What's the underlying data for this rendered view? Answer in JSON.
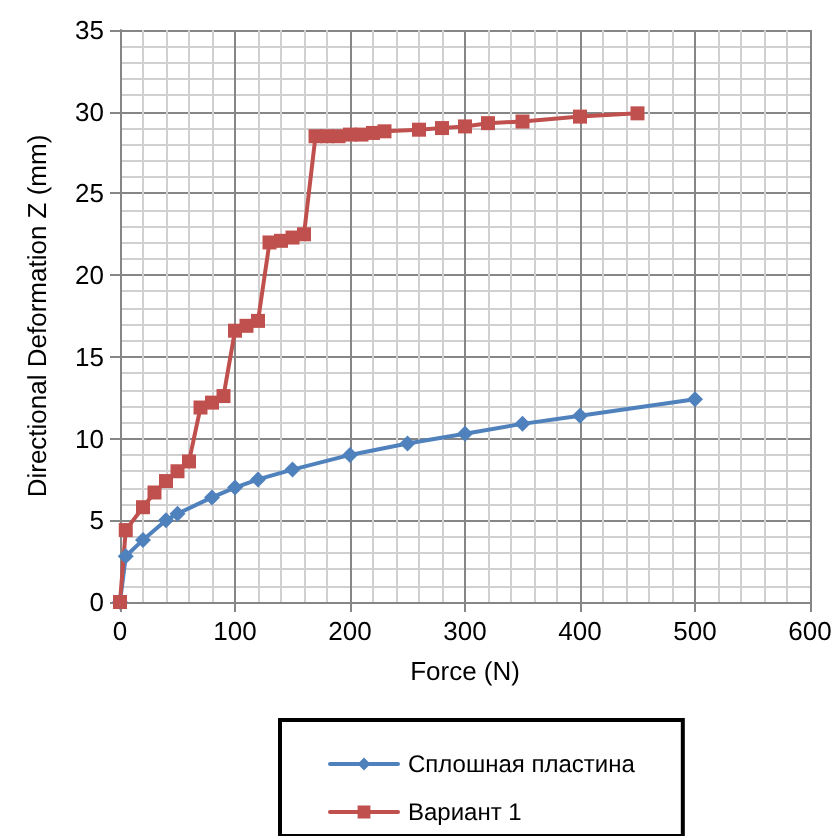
{
  "chart_data": {
    "type": "line",
    "xlabel": "Force (N)",
    "ylabel": "Directional Deformation Z (mm)",
    "xlim": [
      0,
      600
    ],
    "xticks": [
      0,
      100,
      200,
      300,
      400,
      500,
      600
    ],
    "ylim": [
      0,
      35
    ],
    "yticks": [
      0,
      5,
      10,
      15,
      20,
      25,
      30,
      35
    ],
    "grid": true,
    "legend": "bottom",
    "line_style": "solid",
    "series": [
      {
        "name": "Сплошная пластина",
        "color": "#4f81bd",
        "marker": "diamond",
        "x": [
          0,
          5,
          20,
          40,
          50,
          80,
          100,
          120,
          150,
          200,
          250,
          300,
          350,
          400,
          500
        ],
        "values": [
          0,
          2.8,
          3.8,
          5,
          5.4,
          6.4,
          7,
          7.5,
          8.1,
          9,
          9.7,
          10.3,
          10.9,
          11.4,
          12.4
        ]
      },
      {
        "name": "Вариант 1",
        "color": "#c0504d",
        "marker": "square",
        "x": [
          0,
          5,
          20,
          30,
          40,
          50,
          60,
          70,
          80,
          90,
          100,
          110,
          120,
          130,
          140,
          150,
          160,
          170,
          180,
          190,
          200,
          210,
          220,
          230,
          260,
          280,
          300,
          320,
          350,
          400,
          450
        ],
        "values": [
          0,
          4.4,
          5.8,
          6.7,
          7.4,
          8,
          8.6,
          11.9,
          12.2,
          12.6,
          16.6,
          16.9,
          17.2,
          22,
          22.1,
          22.3,
          22.5,
          28.5,
          28.5,
          28.5,
          28.6,
          28.6,
          28.7,
          28.8,
          28.9,
          29,
          29.1,
          29.3,
          29.4,
          29.7,
          29.9
        ]
      }
    ]
  }
}
